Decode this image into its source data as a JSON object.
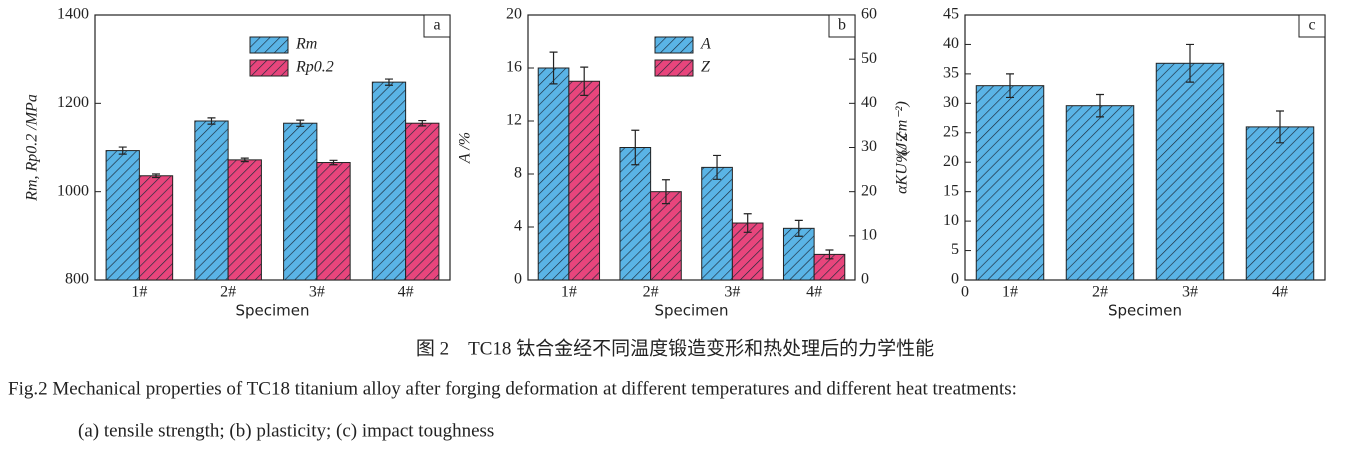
{
  "chart_data": [
    {
      "type": "bar",
      "panel_label": "a",
      "ylabel": "Rm, Rp0.2 /MPa",
      "xlabel": "Specimen",
      "categories": [
        "1#",
        "2#",
        "3#",
        "4#"
      ],
      "series": [
        {
          "name": "Rm",
          "color": "#5ab4e6",
          "values": [
            1093,
            1160,
            1155,
            1248
          ],
          "errors": [
            8,
            7,
            7,
            7
          ]
        },
        {
          "name": "Rp0.2",
          "color": "#e8457c",
          "values": [
            1036,
            1072,
            1066,
            1155
          ],
          "errors": [
            4,
            4,
            5,
            6
          ]
        }
      ],
      "ylim": [
        800,
        1400
      ],
      "yticks": [
        800,
        1000,
        1200,
        1400
      ]
    },
    {
      "type": "bar",
      "panel_label": "b",
      "ylabel": "A /%",
      "y2label": "Z /%",
      "xlabel": "Specimen",
      "categories": [
        "1#",
        "2#",
        "3#",
        "4#"
      ],
      "series": [
        {
          "name": "A",
          "color": "#5ab4e6",
          "values": [
            16,
            10,
            8.5,
            3.9
          ],
          "errors": [
            1.2,
            1.3,
            0.9,
            0.6
          ]
        },
        {
          "name": "Z",
          "color": "#e8457c",
          "axis": "y2",
          "values": [
            45,
            20,
            12.9,
            5.8
          ],
          "errors": [
            3.2,
            2.7,
            2.1,
            1
          ]
        }
      ],
      "ylim": [
        0,
        20
      ],
      "yticks": [
        0,
        4,
        8,
        12,
        16,
        20
      ],
      "y2lim": [
        0,
        60
      ],
      "y2ticks": [
        0,
        10,
        20,
        30,
        40,
        50,
        60
      ]
    },
    {
      "type": "bar",
      "panel_label": "c",
      "ylabel": "αKU /(J·cm⁻²)",
      "xlabel": "Specimen",
      "x_origin_label": "0",
      "categories": [
        "1#",
        "2#",
        "3#",
        "4#"
      ],
      "series": [
        {
          "color": "#5ab4e6",
          "values": [
            33,
            29.6,
            36.8,
            26
          ],
          "errors": [
            2,
            1.9,
            3.2,
            2.7
          ]
        }
      ],
      "ylim": [
        0,
        45
      ],
      "yticks": [
        0,
        5,
        10,
        15,
        20,
        25,
        30,
        35,
        40,
        45
      ]
    }
  ],
  "caption": {
    "zh": "图 2　TC18 钛合金经不同温度锻造变形和热处理后的力学性能",
    "en_line1": "Fig.2   Mechanical properties of TC18 titanium alloy after forging deformation at different temperatures and different heat treatments:",
    "en_line2": "(a) tensile strength; (b) plasticity; (c) impact toughness"
  }
}
